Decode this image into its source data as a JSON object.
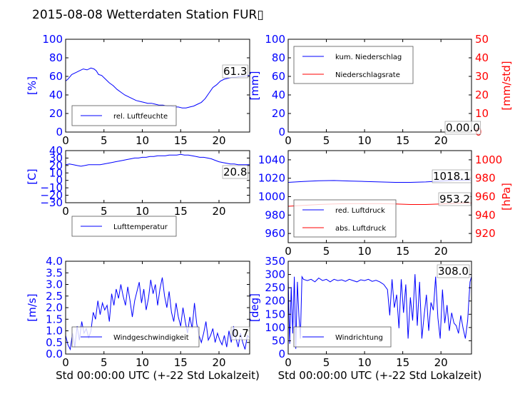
{
  "title": "2015-08-08 Wetterdaten Station FUR▯",
  "colors": {
    "blue": "#0000ff",
    "red": "#ff0000"
  },
  "chart_data": [
    {
      "id": "humidity",
      "type": "line",
      "ylabel": "[%]",
      "xlim": [
        0,
        24
      ],
      "ylim": [
        0,
        100
      ],
      "xticks": [
        "0",
        "5",
        "10",
        "15",
        "20"
      ],
      "yticks": [
        "0",
        "20",
        "40",
        "60",
        "80",
        "100"
      ],
      "grid": false,
      "legend_position": "lower-left",
      "annotation": "61.3",
      "series": [
        {
          "name": "rel. Luftfeuchte",
          "color": "#0000ff",
          "x": [
            0,
            0.3,
            0.8,
            1.3,
            1.8,
            2.3,
            2.8,
            3.3,
            3.7,
            4.0,
            4.3,
            4.7,
            5.2,
            5.7,
            6.2,
            6.7,
            7.2,
            7.7,
            8.2,
            8.7,
            9.2,
            9.7,
            10.2,
            10.7,
            11.2,
            11.7,
            12.2,
            12.7,
            13.2,
            13.7,
            14.2,
            14.7,
            15.2,
            15.7,
            16.2,
            16.7,
            17.2,
            17.7,
            18.2,
            18.7,
            19.2,
            19.7,
            20.2,
            20.7,
            21.2,
            21.7,
            22.2,
            22.7,
            23.2,
            23.7,
            24
          ],
          "y": [
            55,
            57,
            62,
            64,
            66,
            68,
            67,
            69,
            68,
            66,
            62,
            61,
            57,
            53,
            50,
            46,
            43,
            40,
            38,
            36,
            34,
            33,
            32,
            31,
            31,
            30,
            29,
            29,
            28,
            28,
            27,
            27,
            26,
            26,
            27,
            28,
            30,
            32,
            36,
            42,
            48,
            51,
            55,
            57,
            58,
            59,
            59,
            60,
            60,
            61,
            61
          ]
        }
      ]
    },
    {
      "id": "precipitation",
      "type": "line",
      "ylabel": "[mm]",
      "ylabel_right": "[mm/std]",
      "xlim": [
        0,
        24
      ],
      "ylim": [
        0,
        100
      ],
      "ylim_right": [
        0,
        50
      ],
      "xticks": [
        "0",
        "5",
        "10",
        "15",
        "20"
      ],
      "yticks": [
        "0",
        "20",
        "40",
        "60",
        "80",
        "100"
      ],
      "yticks_right": [
        "0",
        "10",
        "20",
        "30",
        "40",
        "50"
      ],
      "grid": false,
      "legend_position": "upper-left",
      "annotation": "0.00.0",
      "series": [
        {
          "name": "kum. Niederschlag",
          "color": "#0000ff",
          "x": [
            0,
            24
          ],
          "y": [
            0,
            0
          ]
        },
        {
          "name": "Niederschlagsrate",
          "color": "#ff0000",
          "axis": "right",
          "x": [
            0,
            24
          ],
          "y": [
            0,
            0
          ]
        }
      ]
    },
    {
      "id": "temperature",
      "type": "line",
      "ylabel": "[C]",
      "xlim": [
        0,
        24
      ],
      "ylim": [
        -30,
        40
      ],
      "xticks": [
        "0",
        "5",
        "10",
        "15",
        "20"
      ],
      "yticks": [
        "−30",
        "−20",
        "−10",
        "0",
        "10",
        "20",
        "30",
        "40"
      ],
      "grid": false,
      "legend_position": "lower-left",
      "annotation": "20.8",
      "series": [
        {
          "name": "Lufttemperatur",
          "color": "#0000ff",
          "x": [
            0,
            0.5,
            1,
            1.5,
            2,
            2.5,
            3,
            3.5,
            4,
            4.5,
            5,
            5.5,
            6,
            6.5,
            7,
            7.5,
            8,
            8.5,
            9,
            9.5,
            10,
            10.5,
            11,
            11.5,
            12,
            12.5,
            13,
            13.5,
            14,
            14.5,
            15,
            15.5,
            16,
            16.5,
            17,
            17.5,
            18,
            18.5,
            19,
            19.5,
            20,
            20.5,
            21,
            21.5,
            22,
            22.5,
            23,
            23.5,
            24
          ],
          "y": [
            21,
            22,
            21,
            20,
            19,
            20,
            21,
            21,
            21,
            21,
            22,
            23,
            24,
            25,
            26,
            27,
            28,
            29,
            30,
            30,
            31,
            31,
            32,
            32,
            33,
            33,
            33,
            34,
            34,
            34,
            35,
            34,
            34,
            33,
            32,
            31,
            31,
            30,
            29,
            27,
            25,
            24,
            23,
            22,
            22,
            21,
            21,
            21,
            21
          ]
        }
      ]
    },
    {
      "id": "pressure",
      "type": "line",
      "ylabel_right": "[hPa]",
      "xlim": [
        0,
        24
      ],
      "ylim": [
        950,
        1050
      ],
      "ylim_right": [
        910,
        1010
      ],
      "xticks": [
        "0",
        "5",
        "10",
        "15",
        "20"
      ],
      "yticks": [
        "960",
        "980",
        "1000",
        "1020",
        "1040"
      ],
      "yticks_right": [
        "920",
        "940",
        "960",
        "980",
        "1000"
      ],
      "grid": false,
      "legend_position": "lower-left",
      "annotations": [
        "1018.1",
        "953.2"
      ],
      "series": [
        {
          "name": "red. Luftdruck",
          "color": "#0000ff",
          "x": [
            0,
            2,
            4,
            6,
            8,
            10,
            12,
            14,
            16,
            18,
            20,
            22,
            24
          ],
          "y": [
            1015.5,
            1016.5,
            1017.2,
            1017.5,
            1017,
            1016.5,
            1016,
            1015.5,
            1015.5,
            1016,
            1017,
            1017.8,
            1018
          ]
        },
        {
          "name": "abs. Luftdruck",
          "color": "#ff0000",
          "axis": "right",
          "x": [
            0,
            2,
            4,
            6,
            8,
            10,
            12,
            14,
            16,
            18,
            20,
            22,
            24
          ],
          "y": [
            949.5,
            950.5,
            951.5,
            952,
            952.5,
            952.5,
            952.5,
            952,
            951.5,
            951.5,
            952,
            952.8,
            953.2
          ]
        }
      ]
    },
    {
      "id": "windspeed",
      "type": "line",
      "ylabel": "[m/s]",
      "xlim": [
        0,
        24
      ],
      "ylim": [
        0,
        4
      ],
      "xticks": [
        "0",
        "5",
        "10",
        "15",
        "20"
      ],
      "yticks": [
        "0.0",
        "0.5",
        "1.0",
        "1.5",
        "2.0",
        "2.5",
        "3.0",
        "3.5",
        "4.0"
      ],
      "xlabel": "Std 00:00:00 UTC (+-22 Std Lokalzeit)",
      "grid": false,
      "legend_position": "lower-left",
      "annotation": "0.7",
      "series": [
        {
          "name": "Windgeschwindigkeit",
          "color": "#0000ff",
          "x": [
            0,
            0.3,
            0.6,
            0.9,
            1.2,
            1.5,
            1.8,
            2.1,
            2.4,
            2.7,
            3.0,
            3.3,
            3.6,
            3.9,
            4.2,
            4.5,
            4.8,
            5.1,
            5.4,
            5.7,
            6.0,
            6.3,
            6.6,
            6.9,
            7.2,
            7.5,
            7.8,
            8.1,
            8.4,
            8.7,
            9.0,
            9.3,
            9.6,
            9.9,
            10.2,
            10.5,
            10.8,
            11.1,
            11.4,
            11.7,
            12.0,
            12.3,
            12.6,
            12.9,
            13.2,
            13.5,
            13.8,
            14.1,
            14.4,
            14.7,
            15.0,
            15.3,
            15.6,
            15.9,
            16.2,
            16.5,
            16.8,
            17.1,
            17.4,
            17.7,
            18.0,
            18.3,
            18.6,
            18.9,
            19.2,
            19.5,
            19.8,
            20.1,
            20.4,
            20.7,
            21.0,
            21.3,
            21.6,
            21.9,
            22.2,
            22.5,
            22.8,
            23.1,
            23.4,
            23.7,
            24.0
          ],
          "y": [
            0.8,
            0.4,
            0.2,
            0.9,
            0.3,
            1.2,
            0.6,
            1.4,
            0.9,
            1.1,
            0.7,
            1.0,
            1.8,
            1.5,
            2.3,
            1.7,
            2.2,
            1.9,
            2.1,
            1.4,
            2.6,
            2.1,
            2.8,
            2.4,
            3.0,
            2.5,
            2.1,
            2.9,
            2.3,
            1.6,
            2.3,
            2.7,
            3.1,
            2.2,
            2.8,
            1.9,
            2.4,
            3.2,
            2.6,
            3.0,
            2.1,
            2.8,
            3.3,
            2.5,
            2.0,
            2.7,
            1.8,
            1.4,
            2.2,
            1.6,
            1.2,
            2.0,
            1.4,
            0.9,
            1.6,
            1.1,
            2.2,
            1.3,
            0.8,
            0.5,
            0.9,
            1.4,
            0.6,
            0.8,
            1.1,
            0.5,
            0.9,
            0.6,
            0.4,
            0.8,
            0.3,
            1.0,
            0.5,
            1.2,
            0.7,
            0.3,
            0.9,
            0.5,
            0.2,
            0.8,
            0.7
          ]
        }
      ]
    },
    {
      "id": "winddirection",
      "type": "line",
      "ylabel": "[deg]",
      "xlim": [
        0,
        24
      ],
      "ylim": [
        0,
        360
      ],
      "xticks": [
        "0",
        "5",
        "10",
        "15",
        "20"
      ],
      "yticks": [
        "0",
        "50",
        "100",
        "150",
        "200",
        "250",
        "300",
        "350"
      ],
      "xlabel": "Std 00:00:00 UTC (+-22 Std Lokalzeit)",
      "grid": false,
      "legend_position": "lower-left",
      "annotation": "308.0",
      "series": [
        {
          "name": "Windrichtung",
          "color": "#0000ff",
          "x": [
            0,
            0.2,
            0.4,
            0.6,
            0.8,
            1.0,
            1.2,
            1.4,
            1.6,
            1.8,
            2.0,
            2.5,
            3,
            3.5,
            4,
            4.5,
            5,
            5.5,
            6,
            6.5,
            7,
            7.5,
            8,
            8.5,
            9,
            9.5,
            10,
            10.5,
            11,
            11.5,
            12,
            12.5,
            13,
            13.3,
            13.6,
            13.9,
            14.2,
            14.5,
            14.8,
            15.1,
            15.4,
            15.7,
            16.0,
            16.3,
            16.6,
            16.9,
            17.2,
            17.5,
            17.8,
            18.1,
            18.4,
            18.7,
            19.0,
            19.3,
            19.6,
            19.9,
            20.2,
            20.5,
            20.8,
            21.1,
            21.4,
            21.7,
            22.0,
            22.3,
            22.6,
            22.9,
            23.2,
            23.5,
            23.8,
            24.0
          ],
          "y": [
            290,
            40,
            260,
            80,
            300,
            20,
            280,
            150,
            60,
            300,
            290,
            285,
            290,
            280,
            295,
            285,
            290,
            280,
            290,
            285,
            288,
            282,
            290,
            285,
            280,
            288,
            285,
            290,
            282,
            286,
            280,
            270,
            250,
            150,
            290,
            180,
            230,
            100,
            290,
            160,
            270,
            60,
            220,
            130,
            310,
            110,
            280,
            60,
            150,
            230,
            90,
            200,
            170,
            300,
            140,
            60,
            250,
            120,
            190,
            90,
            160,
            120,
            110,
            80,
            150,
            100,
            60,
            130,
            280,
            300
          ]
        }
      ]
    }
  ]
}
